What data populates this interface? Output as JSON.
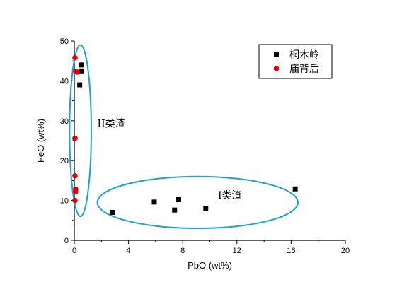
{
  "chart_data": {
    "type": "scatter",
    "title": "",
    "xlabel": "PbO (wt%)",
    "ylabel": "FeO (wt%)",
    "xlim": [
      0,
      20
    ],
    "ylim": [
      0,
      50
    ],
    "xticks": [
      "0",
      "4",
      "8",
      "12",
      "16",
      "20"
    ],
    "yticks": [
      "0",
      "10",
      "20",
      "30",
      "40",
      "50"
    ],
    "grid": false,
    "legend_position": "top-right",
    "series": [
      {
        "name": "桐木岭",
        "marker": "square",
        "color": "#000000",
        "points": [
          {
            "x": 0.5,
            "y": 44.0
          },
          {
            "x": 0.5,
            "y": 42.5
          },
          {
            "x": 0.4,
            "y": 39.0
          },
          {
            "x": 2.8,
            "y": 7.0
          },
          {
            "x": 5.9,
            "y": 9.6
          },
          {
            "x": 7.4,
            "y": 7.6
          },
          {
            "x": 7.7,
            "y": 10.2
          },
          {
            "x": 9.7,
            "y": 7.9
          },
          {
            "x": 16.3,
            "y": 12.9
          }
        ]
      },
      {
        "name": "庙背后",
        "marker": "circle",
        "color": "#e00000",
        "points": [
          {
            "x": 0.05,
            "y": 45.8
          },
          {
            "x": 0.1,
            "y": 42.4
          },
          {
            "x": 0.2,
            "y": 42.2
          },
          {
            "x": 0.05,
            "y": 25.6
          },
          {
            "x": 0.05,
            "y": 16.2
          },
          {
            "x": 0.1,
            "y": 12.8
          },
          {
            "x": 0.1,
            "y": 12.2
          },
          {
            "x": 0.05,
            "y": 10.0
          }
        ]
      }
    ],
    "annotations": [
      {
        "text": "II类渣",
        "kind": "ellipse",
        "color": "#1ea0d0",
        "center": [
          0.45,
          27.5
        ],
        "radii": [
          0.8,
          21.5
        ],
        "label_at": [
          1.7,
          28.5
        ]
      },
      {
        "text": "I类渣",
        "kind": "ellipse",
        "color": "#1ea0d0",
        "center": [
          9.1,
          9.5
        ],
        "radii": [
          7.4,
          6.5
        ],
        "label_at": [
          10.6,
          10.5
        ]
      }
    ]
  }
}
